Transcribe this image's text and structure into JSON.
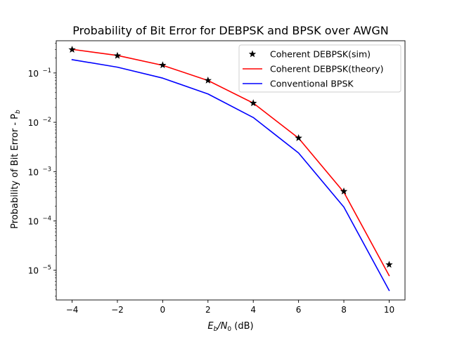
{
  "chart_data": {
    "type": "line",
    "title": "Probability of Bit Error for DEBPSK and BPSK over AWGN",
    "xlabel": {
      "main": "E",
      "sub1": "b",
      "mid": "/N",
      "sub2": "0",
      "tail": " (dB)"
    },
    "ylabel": {
      "main": "Probability of Bit Error - P",
      "sub": "b"
    },
    "x_axis": {
      "ticks": [
        -4,
        -2,
        0,
        2,
        4,
        6,
        8,
        10
      ],
      "tick_labels": [
        "−4",
        "−2",
        "0",
        "2",
        "4",
        "6",
        "8",
        "10"
      ],
      "xlim": [
        -4.7,
        10.7
      ]
    },
    "y_axis": {
      "scale": "log",
      "ylim": [
        2.5e-06,
        0.45
      ],
      "major_ticks": [
        1e-05,
        0.0001,
        0.001,
        0.01,
        0.1
      ],
      "tick_labels": [
        {
          "base": "10",
          "exp": "−5"
        },
        {
          "base": "10",
          "exp": "−4"
        },
        {
          "base": "10",
          "exp": "−3"
        },
        {
          "base": "10",
          "exp": "−2"
        },
        {
          "base": "10",
          "exp": "−1"
        }
      ]
    },
    "grid": false,
    "legend_position": "top-right",
    "series": [
      {
        "name": "Coherent DEBPSK(sim)",
        "kind": "markers",
        "marker": "star",
        "color": "#000000",
        "x": [
          -4,
          -2,
          0,
          2,
          4,
          6,
          8,
          10
        ],
        "y": [
          0.298,
          0.224,
          0.144,
          0.0707,
          0.0245,
          0.00481,
          0.000398,
          1.3e-05
        ]
      },
      {
        "name": "Coherent DEBPSK(theory)",
        "kind": "line",
        "color": "#ff0000",
        "x": [
          -4,
          -2,
          0,
          2,
          4,
          6,
          8,
          10
        ],
        "y": [
          0.3011,
          0.2266,
          0.1428,
          0.0703,
          0.0245,
          0.00477,
          0.000382,
          7.8e-06
        ]
      },
      {
        "name": "Conventional BPSK",
        "kind": "line",
        "color": "#0000ff",
        "x": [
          -4,
          -2,
          0,
          2,
          4,
          6,
          8,
          10
        ],
        "y": [
          0.186,
          0.131,
          0.0786,
          0.0375,
          0.0125,
          0.00239,
          0.000191,
          3.9e-06
        ]
      }
    ]
  }
}
